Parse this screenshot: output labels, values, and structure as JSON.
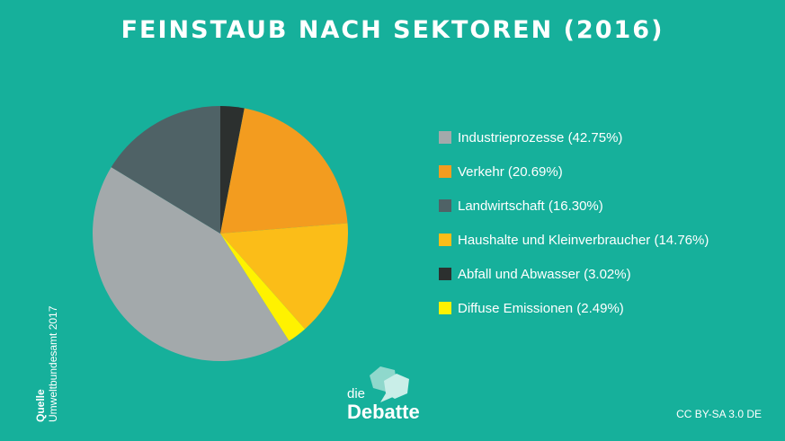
{
  "title": "FEINSTAUB NACH SEKTOREN (2016)",
  "source": {
    "label": "Quelle",
    "value": "Umweltbundesamt 2017"
  },
  "logo": {
    "small": "die",
    "name": "Debatte"
  },
  "license": "CC BY-SA 3.0 DE",
  "colors": {
    "background": "#16b09b"
  },
  "chart_data": {
    "type": "pie",
    "title": "FEINSTAUB NACH SEKTOREN (2016)",
    "legend_position": "right",
    "slices": [
      {
        "label": "Industrieprozesse (42.75%)",
        "value": 42.75,
        "color": "#a3a9ab"
      },
      {
        "label": "Verkehr (20.69%)",
        "value": 20.69,
        "color": "#f39c1f"
      },
      {
        "label": "Landwirtschaft (16.30%)",
        "value": 16.3,
        "color": "#4f6266"
      },
      {
        "label": "Haushalte und Kleinverbraucher (14.76%)",
        "value": 14.76,
        "color": "#fbbd18"
      },
      {
        "label": "Abfall und Abwasser (3.02%)",
        "value": 3.02,
        "color": "#2c302f"
      },
      {
        "label": "Diffuse Emissionen (2.49%)",
        "value": 2.49,
        "color": "#fff200"
      }
    ],
    "draw_order": [
      4,
      1,
      3,
      5,
      0,
      2
    ]
  }
}
